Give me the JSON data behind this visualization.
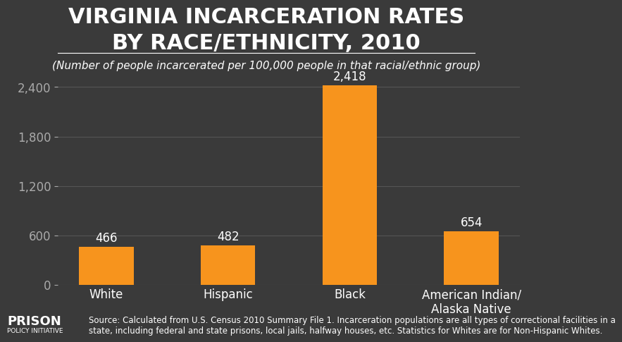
{
  "title_line1": "VIRGINIA INCARCERATION RATES",
  "title_line2": "BY RACE/ETHNICITY, 2010",
  "subtitle": "(Number of people incarcerated per 100,000 people in that racial/ethnic group)",
  "categories": [
    "White",
    "Hispanic",
    "Black",
    "American Indian/\nAlaska Native"
  ],
  "values": [
    466,
    482,
    2418,
    654
  ],
  "bar_color": "#F7941D",
  "background_color": "#3a3a3a",
  "text_color": "#ffffff",
  "tick_color": "#aaaaaa",
  "grid_color": "#555555",
  "yticks": [
    0,
    600,
    1200,
    1800,
    2400
  ],
  "ylim": [
    0,
    2700
  ],
  "source_text": "Source: Calculated from U.S. Census 2010 Summary File 1. Incarceration populations are all types of correctional facilities in a\nstate, including federal and state prisons, local jails, halfway houses, etc. Statistics for Whites are for Non-Hispanic Whites.",
  "logo_text_top": "PRISON",
  "logo_text_bottom": "POLICY INITIATIVE",
  "title_fontsize": 22,
  "subtitle_fontsize": 11,
  "tick_label_fontsize": 12,
  "value_label_fontsize": 12,
  "source_fontsize": 8.5
}
